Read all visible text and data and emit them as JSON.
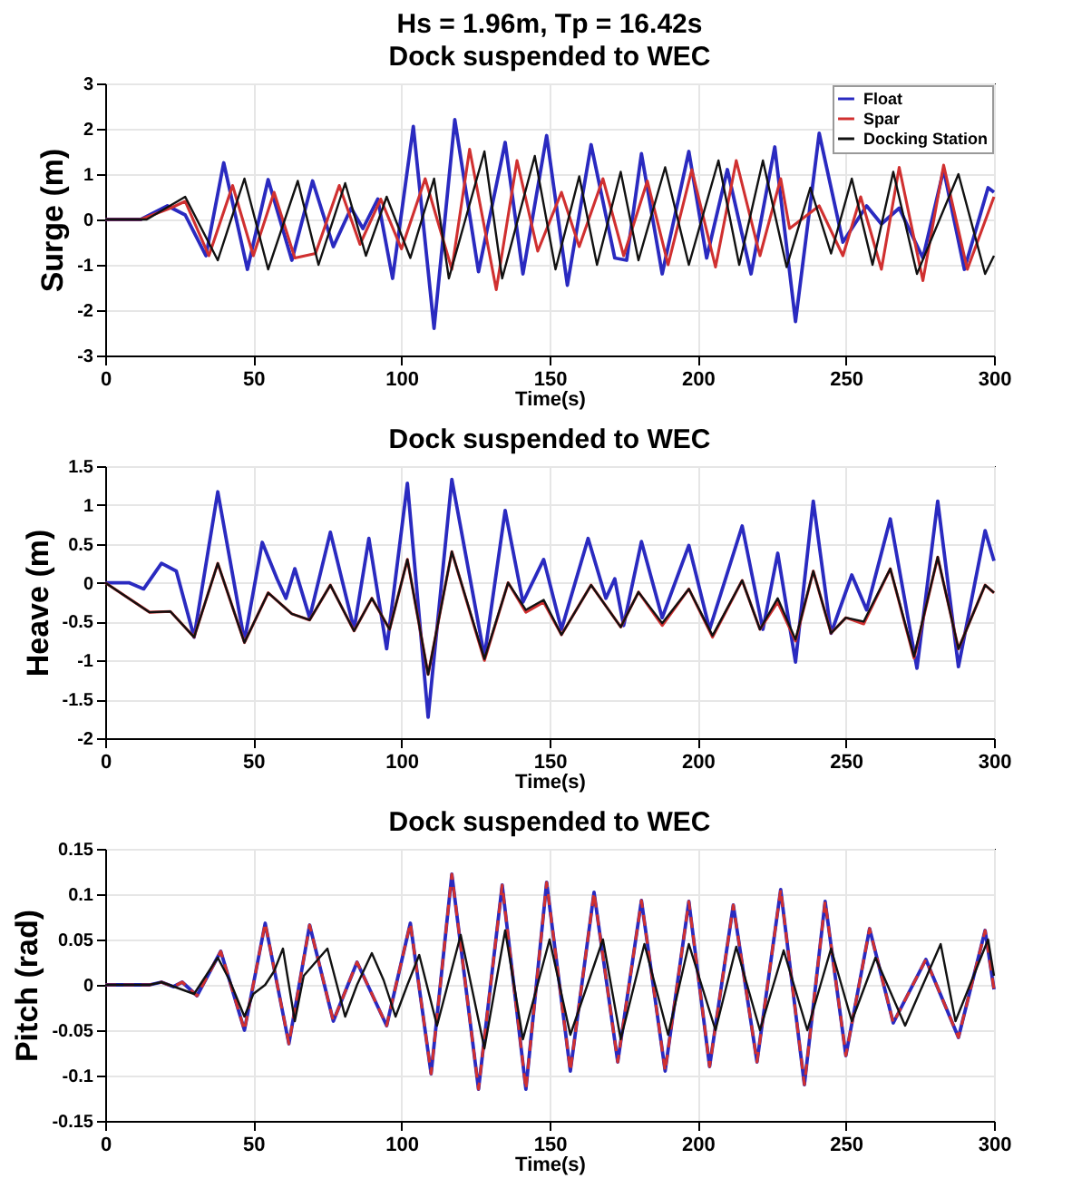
{
  "chart_data": [
    {
      "type": "line",
      "title": "Hs = 1.96m, Tp = 16.42s",
      "subtitle": "Dock suspended to WEC",
      "xlabel": "Time(s)",
      "ylabel": "Surge (m)",
      "xlim": [
        0,
        300
      ],
      "xticks": [
        0,
        50,
        100,
        150,
        200,
        250,
        300
      ],
      "ylim": [
        -3,
        3
      ],
      "yticks": [
        -3,
        -2,
        -1,
        0,
        1,
        2,
        3
      ],
      "grid": true,
      "legend": "top right",
      "marker": "none",
      "line_style": "solid",
      "series": [
        {
          "name": "Float",
          "color": "#2a2ac0",
          "x": [
            0,
            12,
            21,
            27,
            34,
            40,
            48,
            55,
            63,
            70,
            77,
            83,
            87,
            92,
            97,
            104,
            111,
            118,
            126,
            135,
            141,
            149,
            156,
            164,
            172,
            176,
            181,
            188,
            197,
            203,
            210,
            218,
            226,
            233,
            241,
            249,
            257,
            262,
            268,
            276,
            283,
            290,
            298,
            300
          ],
          "values": [
            0,
            0,
            0.3,
            0.1,
            -0.8,
            1.25,
            -1.1,
            0.88,
            -0.9,
            0.85,
            -0.6,
            0.25,
            -0.2,
            0.45,
            -1.3,
            2.05,
            -2.4,
            2.2,
            -1.15,
            1.7,
            -1.2,
            1.85,
            -1.45,
            1.65,
            -0.85,
            -0.9,
            1.45,
            -1.2,
            1.5,
            -0.85,
            1.1,
            -1.2,
            1.6,
            -2.25,
            1.9,
            -0.5,
            0.3,
            -0.1,
            0.25,
            -0.85,
            1.1,
            -1.1,
            0.7,
            0.6
          ]
        },
        {
          "name": "Spar",
          "color": "#d03030",
          "x": [
            0,
            12,
            22,
            27,
            35,
            43,
            50,
            57,
            64,
            71,
            79,
            86,
            93,
            100,
            108,
            117,
            123,
            132,
            139,
            146,
            154,
            160,
            168,
            175,
            183,
            190,
            198,
            206,
            213,
            221,
            228,
            231,
            241,
            249,
            255,
            262,
            268,
            276,
            283,
            291,
            300
          ],
          "values": [
            0,
            0,
            0.25,
            0.4,
            -0.8,
            0.75,
            -0.8,
            0.6,
            -0.85,
            -0.75,
            0.75,
            -0.55,
            0.45,
            -0.65,
            0.9,
            -1.1,
            1.55,
            -1.55,
            1.3,
            -0.7,
            0.6,
            -0.6,
            0.9,
            -0.8,
            0.85,
            -1.0,
            1.1,
            -1.05,
            1.3,
            -0.8,
            0.9,
            -0.2,
            0.3,
            -0.8,
            0.5,
            -1.1,
            1.15,
            -1.35,
            1.2,
            -1.1,
            0.5
          ]
        },
        {
          "name": "Docking Station",
          "color": "#111111",
          "x": [
            0,
            14,
            27,
            38,
            47,
            55,
            65,
            72,
            81,
            88,
            95,
            103,
            111,
            116,
            128,
            134,
            145,
            152,
            160,
            166,
            174,
            180,
            189,
            197,
            207,
            214,
            222,
            230,
            238,
            245,
            252,
            259,
            266,
            274,
            288,
            297,
            300
          ],
          "values": [
            0,
            0,
            0.5,
            -0.9,
            0.9,
            -1.1,
            0.85,
            -1.0,
            0.8,
            -0.8,
            0.5,
            -0.85,
            0.9,
            -1.3,
            1.5,
            -1.3,
            1.4,
            -1.1,
            0.95,
            -1.0,
            1.05,
            -0.9,
            1.15,
            -1.0,
            1.3,
            -1.0,
            1.3,
            -1.05,
            0.7,
            -0.75,
            0.9,
            -1.0,
            1.05,
            -1.2,
            1.0,
            -1.2,
            -0.8
          ]
        }
      ]
    },
    {
      "type": "line",
      "title": "Dock suspended to WEC",
      "xlabel": "Time(s)",
      "ylabel": "Heave (m)",
      "xlim": [
        0,
        300
      ],
      "xticks": [
        0,
        50,
        100,
        150,
        200,
        250,
        300
      ],
      "ylim": [
        -2,
        1.5
      ],
      "yticks": [
        -2,
        -1.5,
        -1,
        -0.5,
        0,
        0.5,
        1,
        1.5
      ],
      "grid": true,
      "legend": "top right",
      "marker": "none",
      "line_style": "solid",
      "series": [
        {
          "name": "Float",
          "color": "#2a2ac0",
          "x": [
            0,
            8,
            13,
            19,
            24,
            30,
            38,
            47,
            53,
            58,
            61,
            64,
            69,
            76,
            84,
            89,
            95,
            102,
            109,
            117,
            128,
            135,
            141,
            148,
            154,
            163,
            169,
            172,
            175,
            181,
            188,
            197,
            204,
            215,
            222,
            227,
            233,
            239,
            245,
            252,
            257,
            265,
            274,
            281,
            288,
            297,
            300
          ],
          "values": [
            0,
            0,
            -0.08,
            0.25,
            0.15,
            -0.7,
            1.17,
            -0.75,
            0.52,
            0.05,
            -0.2,
            0.18,
            -0.45,
            0.65,
            -0.6,
            0.57,
            -0.85,
            1.28,
            -1.73,
            1.33,
            -0.95,
            0.93,
            -0.25,
            0.3,
            -0.6,
            0.57,
            -0.2,
            0.05,
            -0.55,
            0.53,
            -0.45,
            0.48,
            -0.6,
            0.73,
            -0.6,
            0.38,
            -1.02,
            1.05,
            -0.65,
            0.1,
            -0.35,
            0.82,
            -1.1,
            1.05,
            -1.08,
            0.67,
            0.28
          ]
        },
        {
          "name": "Spar",
          "color": "#d03030",
          "x": [
            0,
            15,
            22,
            30,
            38,
            47,
            55,
            63,
            69,
            76,
            84,
            90,
            96,
            102,
            109,
            117,
            128,
            136,
            142,
            148,
            154,
            164,
            174,
            180,
            188,
            197,
            205,
            215,
            221,
            227,
            233,
            239,
            245,
            250,
            256,
            265,
            273,
            281,
            288,
            297,
            300
          ],
          "values": [
            0,
            -0.38,
            -0.37,
            -0.7,
            0.25,
            -0.77,
            -0.13,
            -0.4,
            -0.48,
            -0.03,
            -0.62,
            -0.2,
            -0.6,
            0.3,
            -1.18,
            0.4,
            -1.0,
            0.0,
            -0.38,
            -0.25,
            -0.67,
            -0.03,
            -0.57,
            -0.12,
            -0.55,
            -0.08,
            -0.7,
            0.03,
            -0.6,
            -0.25,
            -0.75,
            0.15,
            -0.65,
            -0.45,
            -0.53,
            0.18,
            -0.97,
            0.33,
            -0.85,
            -0.03,
            -0.13
          ]
        },
        {
          "name": "Docking Station",
          "color": "#111111",
          "x": [
            0,
            15,
            22,
            30,
            38,
            47,
            55,
            63,
            69,
            76,
            84,
            90,
            96,
            102,
            109,
            117,
            128,
            136,
            142,
            148,
            154,
            164,
            174,
            180,
            188,
            197,
            205,
            215,
            221,
            227,
            233,
            239,
            245,
            250,
            256,
            265,
            273,
            281,
            288,
            297,
            300
          ],
          "values": [
            0,
            -0.38,
            -0.37,
            -0.7,
            0.25,
            -0.77,
            -0.13,
            -0.4,
            -0.48,
            -0.03,
            -0.62,
            -0.2,
            -0.6,
            0.3,
            -1.18,
            0.4,
            -0.98,
            0.0,
            -0.35,
            -0.22,
            -0.67,
            -0.03,
            -0.57,
            -0.12,
            -0.52,
            -0.08,
            -0.68,
            0.03,
            -0.6,
            -0.2,
            -0.73,
            0.15,
            -0.65,
            -0.45,
            -0.5,
            0.18,
            -0.95,
            0.33,
            -0.85,
            -0.03,
            -0.13
          ]
        }
      ]
    },
    {
      "type": "line",
      "title": "Dock suspended to WEC",
      "xlabel": "Time(s)",
      "ylabel": "Pitch (rad)",
      "xlim": [
        0,
        300
      ],
      "xticks": [
        0,
        50,
        100,
        150,
        200,
        250,
        300
      ],
      "ylim": [
        -0.15,
        0.15
      ],
      "yticks": [
        -0.15,
        -0.1,
        -0.05,
        0,
        0.05,
        0.1,
        0.15
      ],
      "grid": true,
      "legend": "top right",
      "marker": "none",
      "series": [
        {
          "name": "Float",
          "color": "#1a1ad0",
          "line_style": "solid",
          "x": [
            0,
            15,
            19,
            23,
            26,
            31,
            39,
            47,
            54,
            62,
            69,
            77,
            85,
            95,
            103,
            110,
            117,
            126,
            134,
            142,
            149,
            157,
            165,
            173,
            181,
            189,
            197,
            204,
            212,
            220,
            228,
            236,
            243,
            250,
            258,
            266,
            277,
            288,
            297,
            300
          ],
          "values": [
            0,
            0,
            0.003,
            -0.002,
            0.003,
            -0.012,
            0.037,
            -0.05,
            0.068,
            -0.065,
            0.066,
            -0.04,
            0.025,
            -0.045,
            0.068,
            -0.098,
            0.122,
            -0.115,
            0.11,
            -0.115,
            0.113,
            -0.095,
            0.102,
            -0.085,
            0.093,
            -0.095,
            0.092,
            -0.09,
            0.088,
            -0.085,
            0.105,
            -0.11,
            0.092,
            -0.078,
            0.062,
            -0.042,
            0.028,
            -0.058,
            0.06,
            -0.005
          ]
        },
        {
          "name": "Spar",
          "color": "#e03030",
          "line_style": "dashed",
          "x": [
            0,
            15,
            19,
            23,
            26,
            31,
            39,
            47,
            54,
            62,
            69,
            77,
            85,
            95,
            103,
            110,
            117,
            126,
            134,
            142,
            149,
            157,
            165,
            173,
            181,
            189,
            197,
            204,
            212,
            220,
            228,
            236,
            243,
            250,
            258,
            266,
            277,
            288,
            297,
            300
          ],
          "values": [
            0,
            0,
            0.003,
            -0.002,
            0.003,
            -0.012,
            0.037,
            -0.05,
            0.068,
            -0.065,
            0.066,
            -0.04,
            0.025,
            -0.045,
            0.068,
            -0.098,
            0.122,
            -0.115,
            0.11,
            -0.115,
            0.113,
            -0.095,
            0.102,
            -0.085,
            0.093,
            -0.095,
            0.092,
            -0.09,
            0.088,
            -0.085,
            0.105,
            -0.11,
            0.092,
            -0.078,
            0.062,
            -0.042,
            0.028,
            -0.058,
            0.06,
            -0.005
          ]
        },
        {
          "name": "Docking Station",
          "color": "#111111",
          "line_style": "solid",
          "x": [
            0,
            15,
            19,
            30,
            38,
            42,
            47,
            50,
            54,
            57,
            60,
            64,
            67,
            75,
            81,
            85,
            90,
            94,
            98,
            102,
            106,
            112,
            120,
            128,
            135,
            141,
            150,
            157,
            168,
            174,
            182,
            190,
            197,
            206,
            213,
            221,
            229,
            237,
            245,
            252,
            260,
            270,
            282,
            287,
            298,
            300
          ],
          "values": [
            0,
            0,
            0.003,
            -0.01,
            0.03,
            0.005,
            -0.035,
            -0.01,
            0.0,
            0.015,
            0.04,
            -0.04,
            0.01,
            0.04,
            -0.035,
            0.0,
            0.035,
            0.005,
            -0.035,
            0.0,
            0.033,
            -0.045,
            0.055,
            -0.07,
            0.06,
            -0.06,
            0.05,
            -0.055,
            0.05,
            -0.06,
            0.045,
            -0.055,
            0.045,
            -0.05,
            0.042,
            -0.05,
            0.038,
            -0.05,
            0.04,
            -0.04,
            0.03,
            -0.045,
            0.045,
            -0.04,
            0.05,
            0.01
          ]
        }
      ]
    }
  ]
}
